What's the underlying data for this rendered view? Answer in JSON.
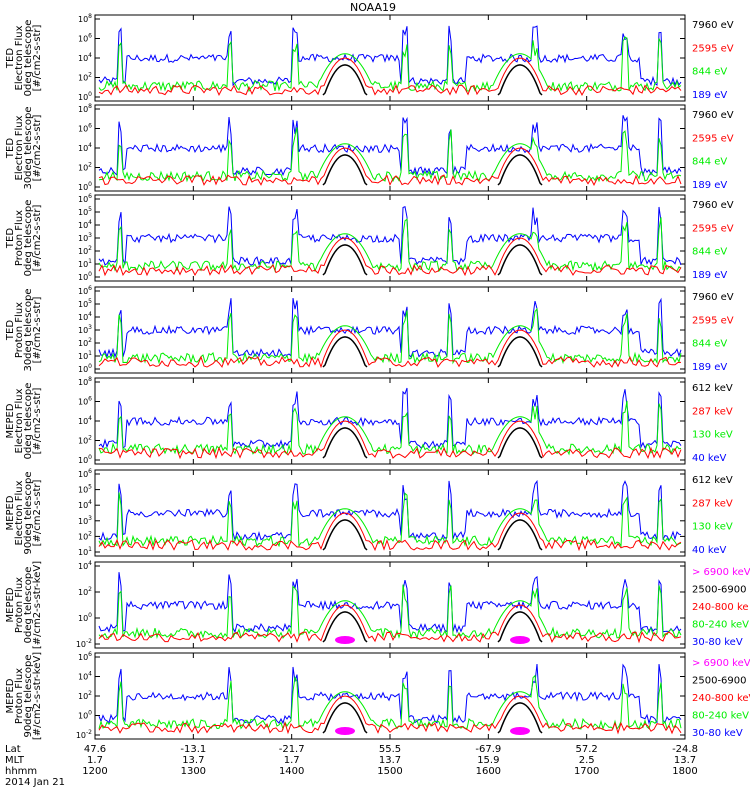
{
  "title": "NOAA19",
  "colors": {
    "blue": "#0000ff",
    "red": "#ff0000",
    "green": "#00ee00",
    "black": "#000000",
    "magenta": "#ff00ff"
  },
  "chart_data": [
    {
      "type": "scatter",
      "ylabel": [
        "TED",
        "Electron Flux",
        "0deg telescope",
        "[#/cm2-s-str]"
      ],
      "ylog": true,
      "yticks": [
        "10^0",
        "10^2",
        "10^4",
        "10^6",
        "10^8"
      ],
      "legend": [
        {
          "label": "7960 eV",
          "color": "black"
        },
        {
          "label": "2595 eV",
          "color": "red"
        },
        {
          "label": "844 eV",
          "color": "green"
        },
        {
          "label": "189 eV",
          "color": "blue"
        }
      ]
    },
    {
      "type": "scatter",
      "ylabel": [
        "TED",
        "Electron Flux",
        "30deg telescope",
        "[#/cm2-s-str]"
      ],
      "ylog": true,
      "yticks": [
        "10^0",
        "10^2",
        "10^4",
        "10^6",
        "10^8"
      ],
      "legend": [
        {
          "label": "7960 eV",
          "color": "black"
        },
        {
          "label": "2595 eV",
          "color": "red"
        },
        {
          "label": "844 eV",
          "color": "green"
        },
        {
          "label": "189 eV",
          "color": "blue"
        }
      ]
    },
    {
      "type": "scatter",
      "ylabel": [
        "TED",
        "Proton Flux",
        "0deg telescope",
        "[#/cm2-s-str]"
      ],
      "ylog": true,
      "yticks": [
        "10^0",
        "10^1",
        "10^2",
        "10^3",
        "10^4",
        "10^5",
        "10^6"
      ],
      "legend": [
        {
          "label": "7960 eV",
          "color": "black"
        },
        {
          "label": "2595 eV",
          "color": "red"
        },
        {
          "label": "844 eV",
          "color": "green"
        },
        {
          "label": "189 eV",
          "color": "blue"
        }
      ]
    },
    {
      "type": "scatter",
      "ylabel": [
        "TED",
        "Proton Flux",
        "30deg telescope",
        "[#/cm2-s-str]"
      ],
      "ylog": true,
      "yticks": [
        "10^0",
        "10^1",
        "10^2",
        "10^3",
        "10^4",
        "10^5",
        "10^6"
      ],
      "legend": [
        {
          "label": "7960 eV",
          "color": "black"
        },
        {
          "label": "2595 eV",
          "color": "red"
        },
        {
          "label": "844 eV",
          "color": "green"
        },
        {
          "label": "189 eV",
          "color": "blue"
        }
      ]
    },
    {
      "type": "scatter",
      "ylabel": [
        "MEPED",
        "Electron Flux",
        "0deg telescope",
        "[#/cm2-s-str]"
      ],
      "ylog": true,
      "yticks": [
        "10^0",
        "10^2",
        "10^4",
        "10^6",
        "10^8"
      ],
      "legend": [
        {
          "label": "612 keV",
          "color": "black"
        },
        {
          "label": "287 keV",
          "color": "red"
        },
        {
          "label": "130 keV",
          "color": "green"
        },
        {
          "label": "40 keV",
          "color": "blue"
        }
      ]
    },
    {
      "type": "scatter",
      "ylabel": [
        "MEPED",
        "Electron Flux",
        "90deg telescope",
        "[#/cm2-s-str]"
      ],
      "ylog": true,
      "yticks": [
        "10^1",
        "10^2",
        "10^3",
        "10^4",
        "10^5",
        "10^6"
      ],
      "legend": [
        {
          "label": "612 keV",
          "color": "black"
        },
        {
          "label": "287 keV",
          "color": "red"
        },
        {
          "label": "130 keV",
          "color": "green"
        },
        {
          "label": "40 keV",
          "color": "blue"
        }
      ]
    },
    {
      "type": "scatter",
      "ylabel": [
        "MEPED",
        "Proton Flux",
        "0deg telescope",
        "[#/cm2-s-str-keV]"
      ],
      "ylog": true,
      "yticks": [
        "10^-2",
        "10^0",
        "10^2",
        "10^4"
      ],
      "legend": [
        {
          "label": "> 6900 keV",
          "color": "magenta"
        },
        {
          "label": "2500-6900",
          "color": "black"
        },
        {
          "label": "240-800 ke",
          "color": "red"
        },
        {
          "label": "80-240 keV",
          "color": "green"
        },
        {
          "label": "30-80 keV",
          "color": "blue"
        }
      ]
    },
    {
      "type": "scatter",
      "ylabel": [
        "MEPED",
        "Proton Flux",
        "90deg telescope",
        "[#/cm2-s-str-keV]"
      ],
      "ylog": true,
      "yticks": [
        "10^-2",
        "10^0",
        "10^2",
        "10^4",
        "10^6"
      ],
      "legend": [
        {
          "label": "> 6900 keV",
          "color": "magenta"
        },
        {
          "label": "2500-6900",
          "color": "black"
        },
        {
          "label": "240-800 keV",
          "color": "red"
        },
        {
          "label": "80-240 keV",
          "color": "green"
        },
        {
          "label": "30-80 keV",
          "color": "blue"
        }
      ]
    }
  ],
  "xaxis": {
    "row_labels": [
      "Lat",
      "MLT",
      "hhmm"
    ],
    "date": "2014 Jan 21",
    "ticks": [
      {
        "lat": "47.6",
        "mlt": "1.7",
        "hhmm": "1200"
      },
      {
        "lat": "-13.1",
        "mlt": "13.7",
        "hhmm": "1300"
      },
      {
        "lat": "-21.7",
        "mlt": "1.7",
        "hhmm": "1400"
      },
      {
        "lat": "55.5",
        "mlt": "13.7",
        "hhmm": "1500"
      },
      {
        "lat": "-67.9",
        "mlt": "15.9",
        "hhmm": "1600"
      },
      {
        "lat": "57.2",
        "mlt": "2.5",
        "hhmm": "1700"
      },
      {
        "lat": "-24.8",
        "mlt": "13.7",
        "hhmm": "1800"
      }
    ]
  }
}
